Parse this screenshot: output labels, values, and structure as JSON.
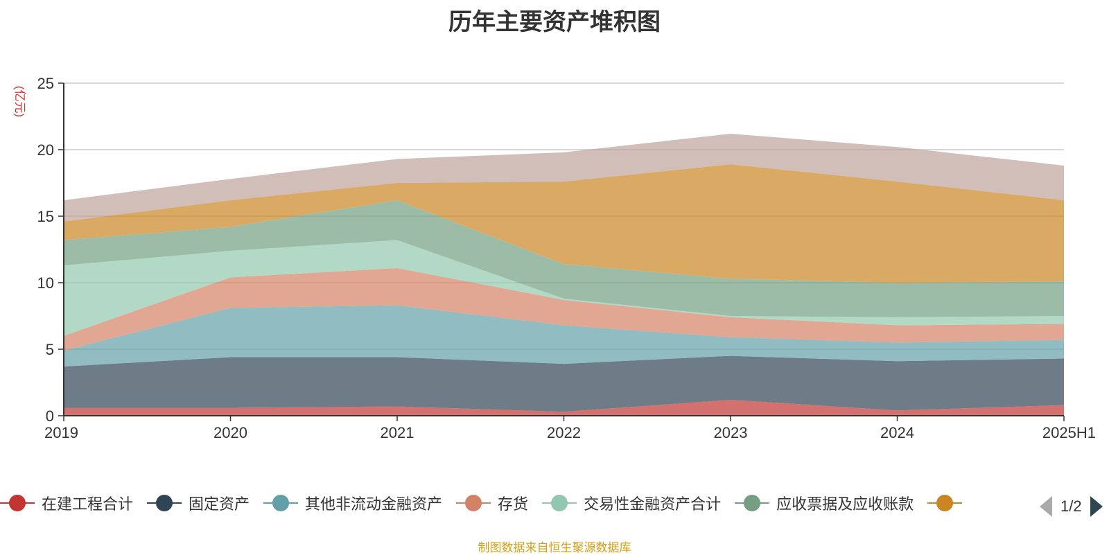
{
  "chart_data": {
    "type": "area",
    "stacked": true,
    "title": "历年主要资产堆积图",
    "ylabel": "(亿元)",
    "ylim": [
      0,
      25
    ],
    "yticks": [
      0,
      5,
      10,
      15,
      20,
      25
    ],
    "grid": true,
    "categories": [
      "2019",
      "2020",
      "2021",
      "2022",
      "2023",
      "2024",
      "2025H1"
    ],
    "series": [
      {
        "name": "在建工程合计",
        "color": "#c23531",
        "values": [
          0.6,
          0.6,
          0.7,
          0.3,
          1.2,
          0.4,
          0.8
        ]
      },
      {
        "name": "固定资产",
        "color": "#2f4554",
        "values": [
          3.1,
          3.8,
          3.7,
          3.6,
          3.3,
          3.7,
          3.5
        ]
      },
      {
        "name": "其他非流动金融资产",
        "color": "#61a0a8",
        "values": [
          1.2,
          3.7,
          3.9,
          2.9,
          1.4,
          1.4,
          1.4
        ]
      },
      {
        "name": "存货",
        "color": "#d48265",
        "values": [
          1.1,
          2.3,
          2.8,
          1.9,
          1.5,
          1.3,
          1.2
        ]
      },
      {
        "name": "交易性金融资产合计",
        "color": "#91c7ae",
        "values": [
          5.3,
          2.0,
          2.1,
          0.1,
          0.1,
          0.6,
          0.6
        ]
      },
      {
        "name": "应收票据及应收账款",
        "color": "#749f83",
        "values": [
          1.9,
          1.8,
          3.0,
          2.6,
          2.8,
          2.6,
          2.6
        ]
      },
      {
        "name": "",
        "color": "#ca8622",
        "values": [
          1.4,
          2.0,
          1.3,
          6.2,
          8.6,
          7.6,
          6.1
        ]
      },
      {
        "name": "",
        "color": "#bda29a",
        "values": [
          1.6,
          1.6,
          1.8,
          2.2,
          2.3,
          2.6,
          2.6
        ]
      }
    ]
  },
  "legend": {
    "items": [
      {
        "name": "在建工程合计",
        "color": "#c23531"
      },
      {
        "name": "固定资产",
        "color": "#2f4554"
      },
      {
        "name": "其他非流动金融资产",
        "color": "#61a0a8"
      },
      {
        "name": "存货",
        "color": "#d48265"
      },
      {
        "name": "交易性金融资产合计",
        "color": "#91c7ae"
      },
      {
        "name": "应收票据及应收账款",
        "color": "#749f83"
      },
      {
        "name": "",
        "color": "#ca8622"
      }
    ],
    "page_label": "1/2"
  },
  "source_note": "制图数据来自恒生聚源数据库"
}
